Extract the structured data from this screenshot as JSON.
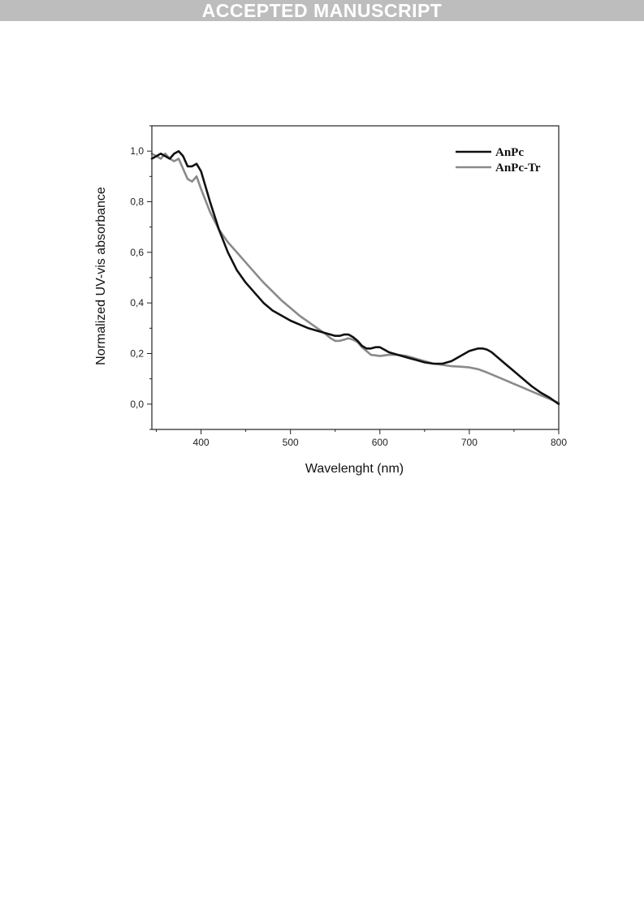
{
  "banner": {
    "text": "ACCEPTED MANUSCRIPT"
  },
  "chart_data": {
    "type": "line",
    "xlabel": "Wavelenght (nm)",
    "ylabel": "Normalized UV-vis absorbance",
    "xlim": [
      345,
      800
    ],
    "ylim": [
      -0.1,
      1.1
    ],
    "x_ticks": [
      400,
      500,
      600,
      700,
      800
    ],
    "x_tick_labels": [
      "400",
      "500",
      "600",
      "700",
      "800"
    ],
    "y_ticks": [
      0.0,
      0.2,
      0.4,
      0.6,
      0.8,
      1.0
    ],
    "y_tick_labels": [
      "0,0",
      "0,2",
      "0,4",
      "0,6",
      "0,8",
      "1,0"
    ],
    "grid": false,
    "legend_position": "top-right",
    "series": [
      {
        "name": "AnPc",
        "color": "#111111",
        "x": [
          345,
          350,
          355,
          360,
          365,
          370,
          375,
          380,
          385,
          390,
          395,
          400,
          410,
          420,
          430,
          440,
          450,
          460,
          470,
          480,
          490,
          500,
          510,
          520,
          530,
          540,
          550,
          555,
          560,
          565,
          570,
          575,
          580,
          585,
          590,
          595,
          600,
          605,
          610,
          620,
          630,
          640,
          650,
          660,
          670,
          680,
          690,
          700,
          705,
          710,
          715,
          720,
          725,
          730,
          740,
          750,
          760,
          770,
          780,
          790,
          800
        ],
        "y": [
          0.97,
          0.98,
          0.99,
          0.98,
          0.97,
          0.99,
          1.0,
          0.98,
          0.94,
          0.94,
          0.95,
          0.92,
          0.8,
          0.69,
          0.6,
          0.53,
          0.48,
          0.44,
          0.4,
          0.37,
          0.35,
          0.33,
          0.315,
          0.3,
          0.29,
          0.28,
          0.27,
          0.27,
          0.275,
          0.275,
          0.265,
          0.25,
          0.23,
          0.22,
          0.22,
          0.225,
          0.225,
          0.215,
          0.205,
          0.195,
          0.185,
          0.175,
          0.165,
          0.16,
          0.16,
          0.17,
          0.19,
          0.21,
          0.215,
          0.22,
          0.22,
          0.215,
          0.205,
          0.19,
          0.16,
          0.13,
          0.1,
          0.07,
          0.045,
          0.025,
          0.0
        ]
      },
      {
        "name": "AnPc-Tr",
        "color": "#8a8a8a",
        "x": [
          345,
          350,
          355,
          360,
          365,
          370,
          375,
          380,
          385,
          390,
          395,
          400,
          410,
          420,
          430,
          440,
          450,
          460,
          470,
          480,
          490,
          500,
          510,
          520,
          530,
          540,
          545,
          550,
          555,
          560,
          565,
          570,
          575,
          580,
          590,
          600,
          610,
          620,
          630,
          640,
          650,
          660,
          670,
          680,
          690,
          700,
          710,
          720,
          730,
          740,
          750,
          760,
          770,
          780,
          790,
          800
        ],
        "y": [
          0.99,
          0.98,
          0.97,
          0.99,
          0.97,
          0.96,
          0.97,
          0.93,
          0.89,
          0.88,
          0.9,
          0.85,
          0.76,
          0.69,
          0.64,
          0.6,
          0.56,
          0.52,
          0.48,
          0.445,
          0.41,
          0.38,
          0.35,
          0.325,
          0.3,
          0.275,
          0.26,
          0.25,
          0.25,
          0.255,
          0.26,
          0.255,
          0.245,
          0.225,
          0.195,
          0.19,
          0.195,
          0.195,
          0.19,
          0.18,
          0.17,
          0.16,
          0.155,
          0.15,
          0.148,
          0.145,
          0.138,
          0.125,
          0.11,
          0.095,
          0.08,
          0.065,
          0.05,
          0.035,
          0.02,
          0.005
        ]
      }
    ]
  }
}
